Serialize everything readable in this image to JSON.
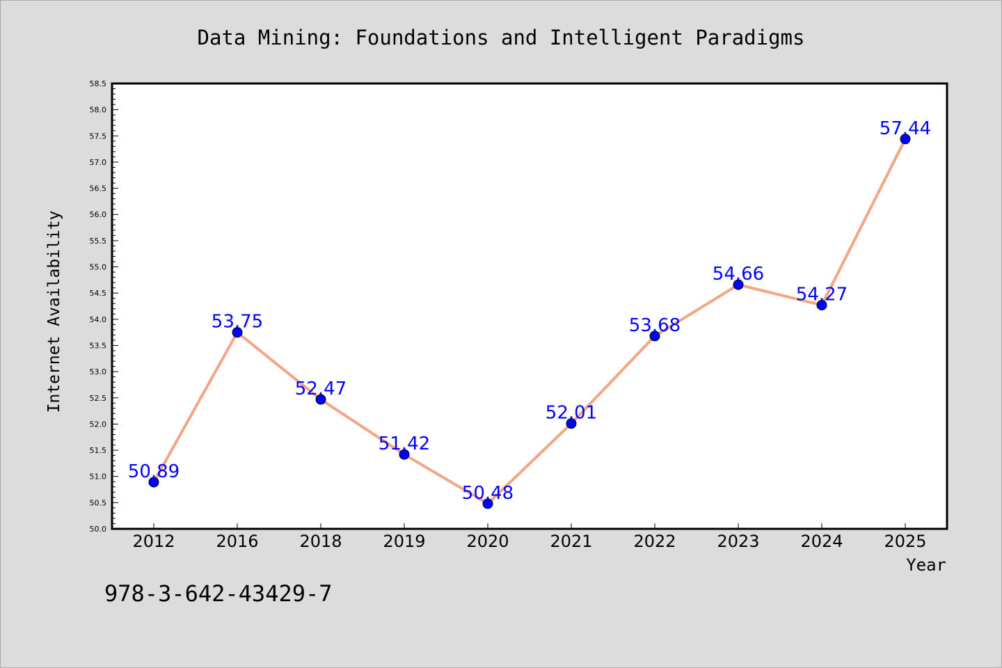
{
  "chart_data": {
    "type": "line",
    "title": "Data Mining: Foundations and Intelligent Paradigms",
    "xlabel": "Year",
    "ylabel": "Internet Availability",
    "categories": [
      "2012",
      "2016",
      "2018",
      "2019",
      "2020",
      "2021",
      "2022",
      "2023",
      "2024",
      "2025"
    ],
    "series": [
      {
        "values": [
          50.89,
          53.75,
          52.47,
          51.42,
          50.48,
          52.01,
          53.68,
          54.66,
          54.27,
          57.44
        ],
        "data_labels": [
          "50.89",
          "53.75",
          "52.47",
          "51.42",
          "50.48",
          "52.01",
          "53.68",
          "54.66",
          "54.27",
          "57.44"
        ]
      }
    ],
    "ylim": [
      50.0,
      58.5
    ],
    "yticks": [
      "50.0",
      "50.5",
      "51.0",
      "51.5",
      "52.0",
      "52.5",
      "53.0",
      "53.5",
      "54.0",
      "54.5",
      "55.0",
      "55.5",
      "56.0",
      "56.5",
      "57.0",
      "57.5",
      "58.0",
      "58.5"
    ],
    "grid": false,
    "colors": {
      "line": "#f4a582",
      "marker": "#0000ff",
      "data_label": "#0000ff",
      "background": "#dcdcdc",
      "plot_area": "#ffffff"
    }
  },
  "footer": {
    "isbn": "978-3-642-43429-7"
  }
}
